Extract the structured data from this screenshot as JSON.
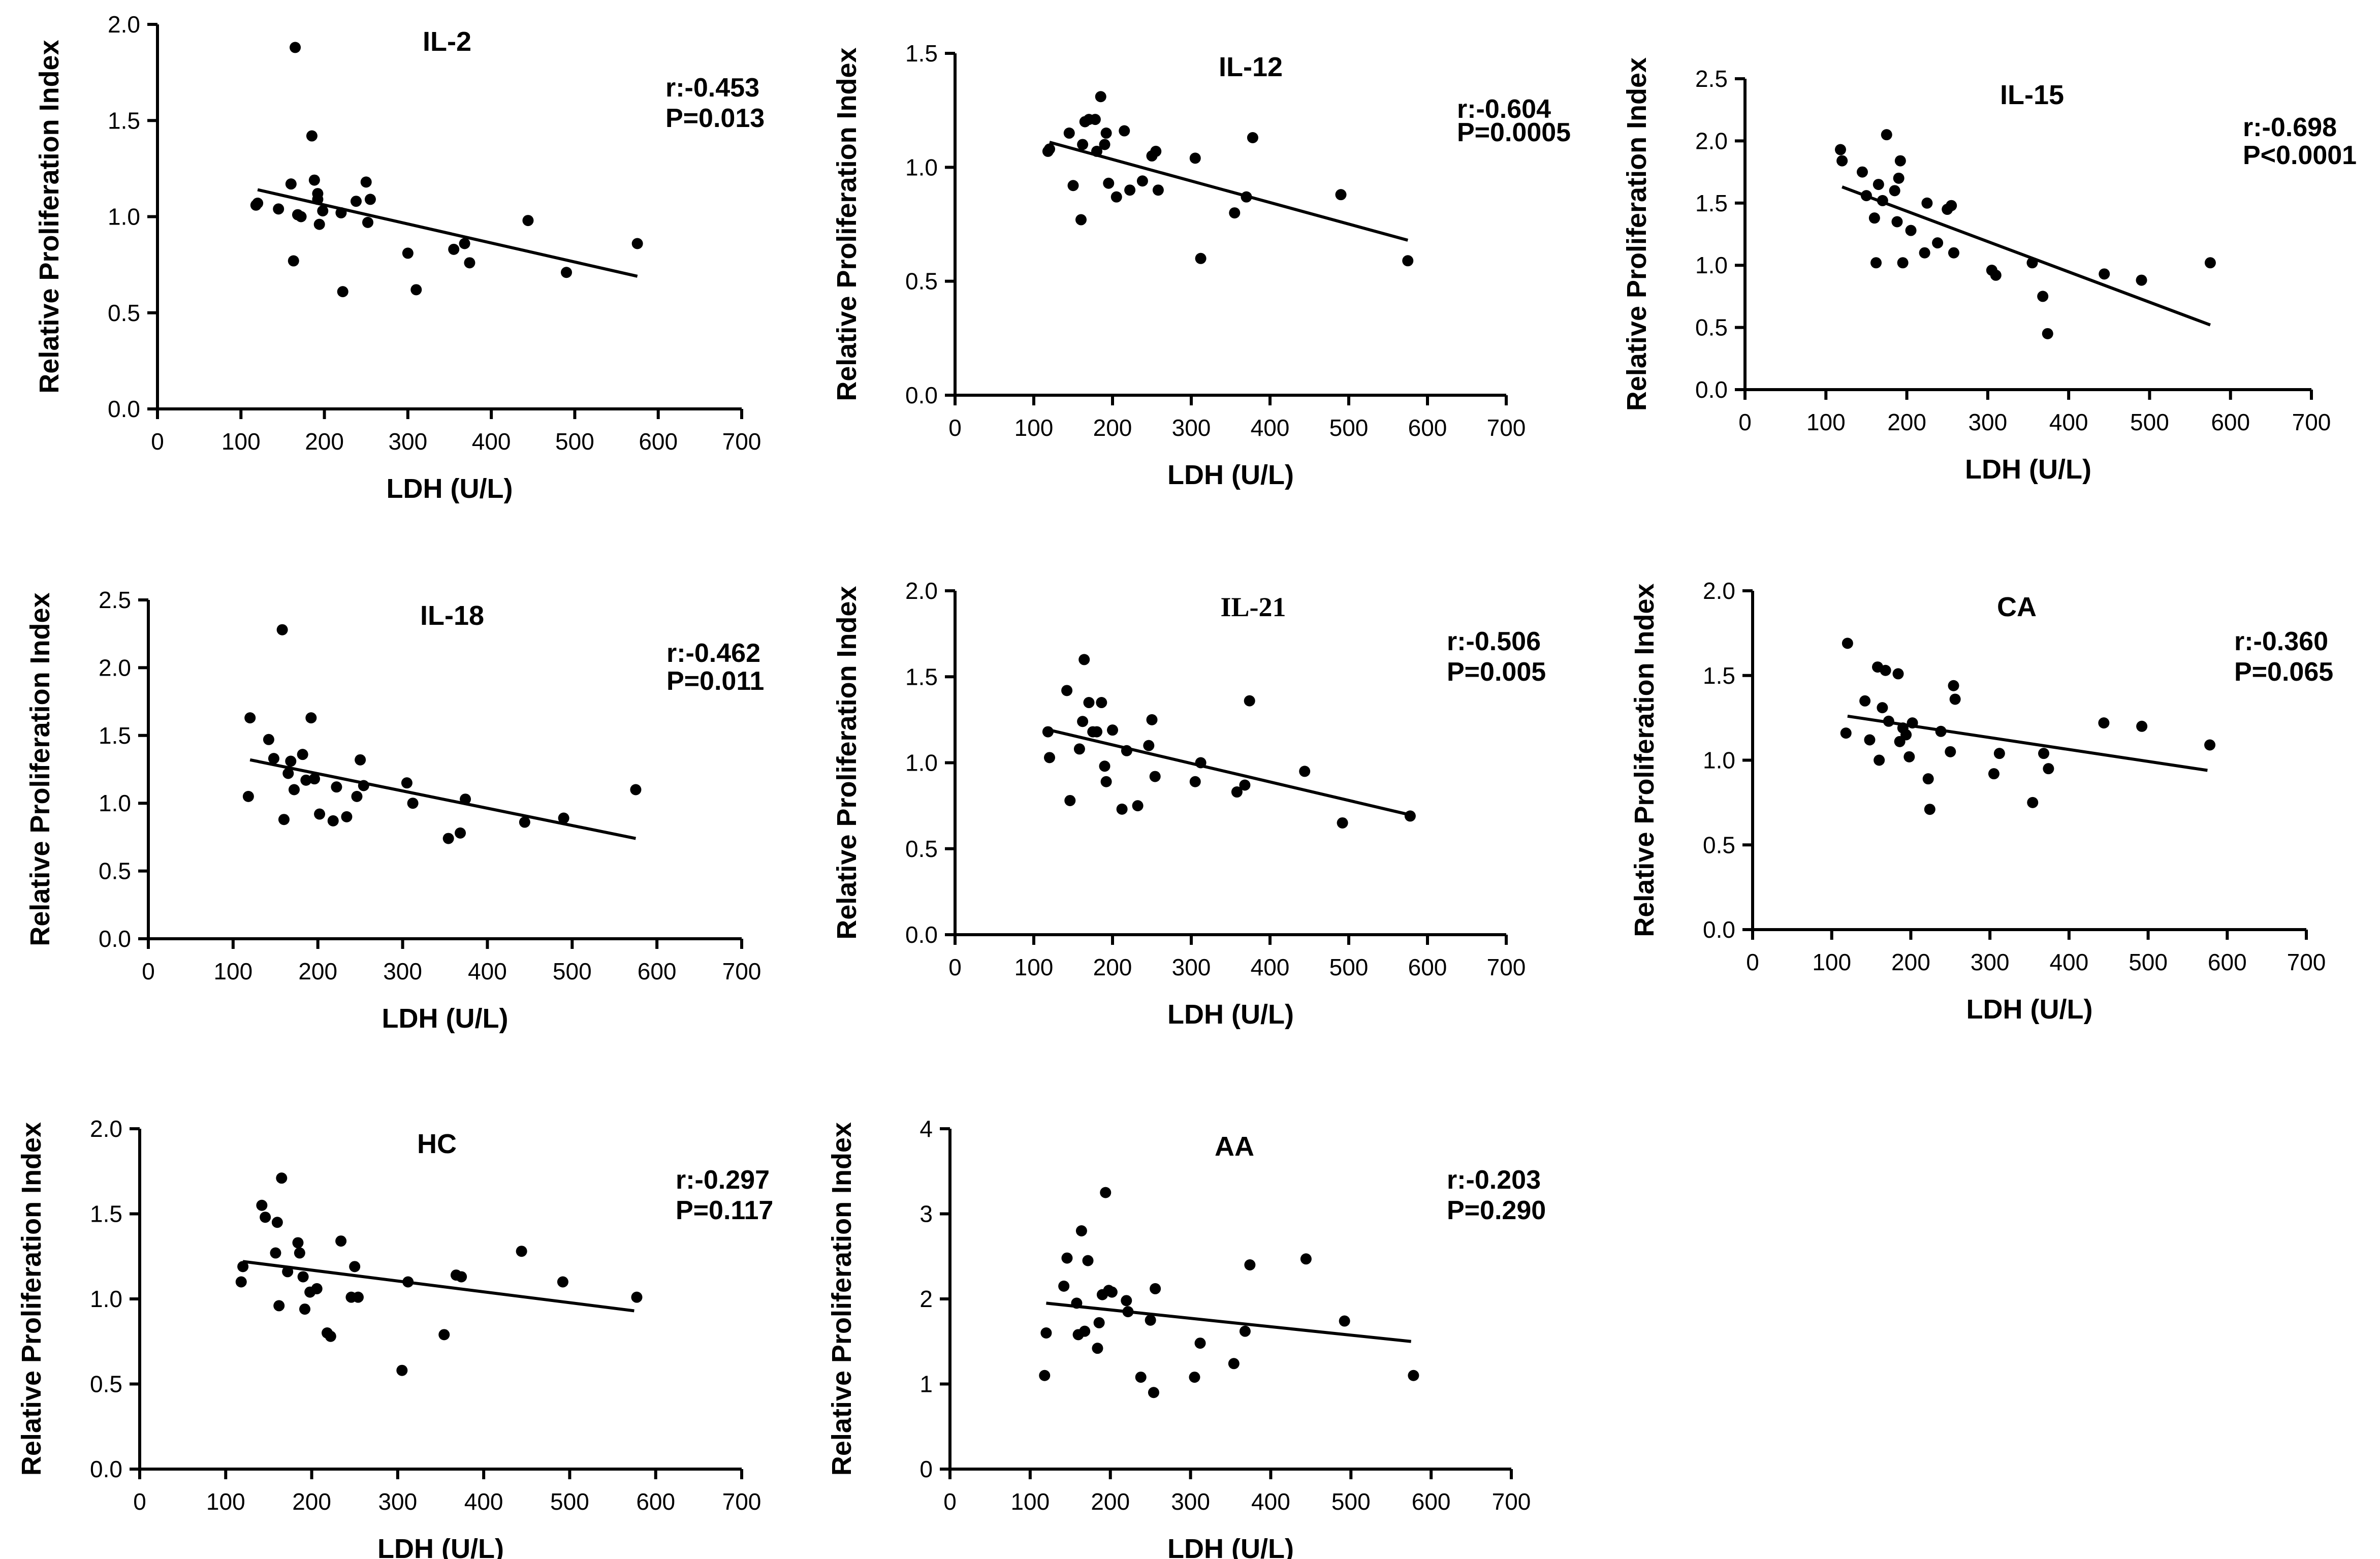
{
  "chart_data": [
    {
      "type": "scatter",
      "title": "IL-2",
      "xlabel": "LDH (U/L)",
      "ylabel": "Relative Proliferation Index",
      "xlim": [
        0,
        700
      ],
      "ylim": [
        0,
        2.0
      ],
      "xticks": [
        0,
        100,
        200,
        300,
        400,
        500,
        600,
        700
      ],
      "xtick_labels": [
        "0",
        "100",
        "200",
        "300",
        "400",
        "500",
        "600",
        "700"
      ],
      "yticks": [
        0,
        0.5,
        1.0,
        1.5,
        2.0
      ],
      "ytick_labels": [
        "0.0",
        "0.5",
        "1.0",
        "1.5",
        "2.0"
      ],
      "r_text": "r:-0.453",
      "p_text": "P=0.013",
      "points": [
        [
          118,
          1.06
        ],
        [
          120,
          1.07
        ],
        [
          145,
          1.04
        ],
        [
          160,
          1.17
        ],
        [
          163,
          0.77
        ],
        [
          165,
          1.88
        ],
        [
          168,
          1.01
        ],
        [
          172,
          1.0
        ],
        [
          185,
          1.42
        ],
        [
          188,
          1.19
        ],
        [
          192,
          1.12
        ],
        [
          192,
          1.09
        ],
        [
          194,
          0.96
        ],
        [
          198,
          1.03
        ],
        [
          220,
          1.02
        ],
        [
          222,
          0.61
        ],
        [
          238,
          1.08
        ],
        [
          250,
          1.18
        ],
        [
          252,
          0.97
        ],
        [
          255,
          1.09
        ],
        [
          300,
          0.81
        ],
        [
          310,
          0.62
        ],
        [
          355,
          0.83
        ],
        [
          368,
          0.86
        ],
        [
          374,
          0.76
        ],
        [
          444,
          0.98
        ],
        [
          490,
          0.71
        ],
        [
          575,
          0.86
        ]
      ],
      "fit": {
        "x": [
          120,
          575
        ],
        "y": [
          1.14,
          0.69
        ]
      }
    },
    {
      "type": "scatter",
      "title": "IL-12",
      "xlabel": "LDH (U/L)",
      "ylabel": "Relative Proliferation Index",
      "xlim": [
        0,
        700
      ],
      "ylim": [
        0,
        1.5
      ],
      "xticks": [
        0,
        100,
        200,
        300,
        400,
        500,
        600,
        700
      ],
      "xtick_labels": [
        "0",
        "100",
        "200",
        "300",
        "400",
        "500",
        "600",
        "700"
      ],
      "yticks": [
        0,
        0.5,
        1.0,
        1.5
      ],
      "ytick_labels": [
        "0.0",
        "0.5",
        "1.0",
        "1.5"
      ],
      "r_text": "r:-0.604",
      "p_text": "P=0.0005",
      "points": [
        [
          118,
          1.07
        ],
        [
          120,
          1.08
        ],
        [
          145,
          1.15
        ],
        [
          150,
          0.92
        ],
        [
          160,
          0.77
        ],
        [
          162,
          1.1
        ],
        [
          165,
          1.2
        ],
        [
          170,
          1.21
        ],
        [
          178,
          1.21
        ],
        [
          180,
          1.07
        ],
        [
          185,
          1.31
        ],
        [
          190,
          1.1
        ],
        [
          192,
          1.15
        ],
        [
          195,
          0.93
        ],
        [
          205,
          0.87
        ],
        [
          215,
          1.16
        ],
        [
          222,
          0.9
        ],
        [
          238,
          0.94
        ],
        [
          250,
          1.05
        ],
        [
          255,
          1.07
        ],
        [
          258,
          0.9
        ],
        [
          305,
          1.04
        ],
        [
          312,
          0.6
        ],
        [
          355,
          0.8
        ],
        [
          370,
          0.87
        ],
        [
          378,
          1.13
        ],
        [
          490,
          0.88
        ],
        [
          575,
          0.59
        ]
      ],
      "fit": {
        "x": [
          120,
          575
        ],
        "y": [
          1.11,
          0.68
        ]
      }
    },
    {
      "type": "scatter",
      "title": "IL-15",
      "xlabel": "LDH (U/L)",
      "ylabel": "Relative Proliferation Index",
      "xlim": [
        0,
        700
      ],
      "ylim": [
        0,
        2.5
      ],
      "xticks": [
        0,
        100,
        200,
        300,
        400,
        500,
        600,
        700
      ],
      "xtick_labels": [
        "0",
        "100",
        "200",
        "300",
        "400",
        "500",
        "600",
        "700"
      ],
      "yticks": [
        0,
        0.5,
        1.0,
        1.5,
        2.0,
        2.5
      ],
      "ytick_labels": [
        "0.0",
        "0.5",
        "1.0",
        "1.5",
        "2.0",
        "2.5"
      ],
      "r_text": "r:-0.698",
      "p_text": "P<0.0001",
      "points": [
        [
          118,
          1.93
        ],
        [
          120,
          1.84
        ],
        [
          145,
          1.75
        ],
        [
          150,
          1.56
        ],
        [
          160,
          1.38
        ],
        [
          162,
          1.02
        ],
        [
          165,
          1.65
        ],
        [
          170,
          1.52
        ],
        [
          175,
          2.05
        ],
        [
          185,
          1.6
        ],
        [
          188,
          1.35
        ],
        [
          190,
          1.7
        ],
        [
          192,
          1.84
        ],
        [
          195,
          1.02
        ],
        [
          205,
          1.28
        ],
        [
          222,
          1.1
        ],
        [
          225,
          1.5
        ],
        [
          238,
          1.18
        ],
        [
          250,
          1.45
        ],
        [
          255,
          1.48
        ],
        [
          258,
          1.1
        ],
        [
          305,
          0.96
        ],
        [
          310,
          0.92
        ],
        [
          355,
          1.02
        ],
        [
          368,
          0.75
        ],
        [
          374,
          0.45
        ],
        [
          444,
          0.93
        ],
        [
          490,
          0.88
        ],
        [
          575,
          1.02
        ]
      ],
      "fit": {
        "x": [
          120,
          575
        ],
        "y": [
          1.63,
          0.52
        ]
      }
    },
    {
      "type": "scatter",
      "title": "IL-18",
      "xlabel": "LDH (U/L)",
      "ylabel": "Relative Proliferation Index",
      "xlim": [
        0,
        700
      ],
      "ylim": [
        0,
        2.5
      ],
      "xticks": [
        0,
        100,
        200,
        300,
        400,
        500,
        600,
        700
      ],
      "xtick_labels": [
        "0",
        "100",
        "200",
        "300",
        "400",
        "500",
        "600",
        "700"
      ],
      "yticks": [
        0,
        0.5,
        1.0,
        1.5,
        2.0,
        2.5
      ],
      "ytick_labels": [
        "0.0",
        "0.5",
        "1.0",
        "1.5",
        "2.0",
        "2.5"
      ],
      "r_text": "r:-0.462",
      "p_text": "P=0.011",
      "points": [
        [
          118,
          1.05
        ],
        [
          120,
          1.63
        ],
        [
          142,
          1.47
        ],
        [
          148,
          1.33
        ],
        [
          158,
          2.28
        ],
        [
          160,
          0.88
        ],
        [
          165,
          1.22
        ],
        [
          168,
          1.31
        ],
        [
          172,
          1.1
        ],
        [
          182,
          1.36
        ],
        [
          186,
          1.17
        ],
        [
          192,
          1.63
        ],
        [
          196,
          1.18
        ],
        [
          202,
          0.92
        ],
        [
          218,
          0.87
        ],
        [
          222,
          1.12
        ],
        [
          234,
          0.9
        ],
        [
          246,
          1.05
        ],
        [
          250,
          1.32
        ],
        [
          254,
          1.13
        ],
        [
          305,
          1.15
        ],
        [
          312,
          1.0
        ],
        [
          354,
          0.74
        ],
        [
          368,
          0.78
        ],
        [
          374,
          1.03
        ],
        [
          444,
          0.86
        ],
        [
          490,
          0.89
        ],
        [
          575,
          1.1
        ]
      ],
      "fit": {
        "x": [
          120,
          575
        ],
        "y": [
          1.32,
          0.74
        ]
      }
    },
    {
      "type": "scatter",
      "title": "IL-21",
      "xlabel": "LDH (U/L)",
      "ylabel": "Relative Proliferation Index",
      "xlim": [
        0,
        700
      ],
      "ylim": [
        0,
        2.0
      ],
      "xticks": [
        0,
        100,
        200,
        300,
        400,
        500,
        600,
        700
      ],
      "xtick_labels": [
        "0",
        "100",
        "200",
        "300",
        "400",
        "500",
        "600",
        "700"
      ],
      "yticks": [
        0,
        0.5,
        1.0,
        1.5,
        2.0
      ],
      "ytick_labels": [
        "0.0",
        "0.5",
        "1.0",
        "1.5",
        "2.0"
      ],
      "r_text": "r:-0.506",
      "p_text": "P=0.005",
      "points": [
        [
          118,
          1.18
        ],
        [
          120,
          1.03
        ],
        [
          142,
          1.42
        ],
        [
          146,
          0.78
        ],
        [
          158,
          1.08
        ],
        [
          162,
          1.24
        ],
        [
          164,
          1.6
        ],
        [
          170,
          1.35
        ],
        [
          175,
          1.18
        ],
        [
          180,
          1.18
        ],
        [
          186,
          1.35
        ],
        [
          190,
          0.98
        ],
        [
          192,
          0.89
        ],
        [
          200,
          1.19
        ],
        [
          212,
          0.73
        ],
        [
          218,
          1.07
        ],
        [
          232,
          0.75
        ],
        [
          246,
          1.1
        ],
        [
          250,
          1.25
        ],
        [
          254,
          0.92
        ],
        [
          305,
          0.89
        ],
        [
          312,
          1.0
        ],
        [
          358,
          0.83
        ],
        [
          368,
          0.87
        ],
        [
          374,
          1.36
        ],
        [
          444,
          0.95
        ],
        [
          492,
          0.65
        ],
        [
          578,
          0.69
        ]
      ],
      "fit": {
        "x": [
          120,
          575
        ],
        "y": [
          1.19,
          0.7
        ]
      }
    },
    {
      "type": "scatter",
      "title": "CA",
      "xlabel": "LDH (U/L)",
      "ylabel": "Relative Proliferation Index",
      "xlim": [
        0,
        700
      ],
      "ylim": [
        0,
        2.0
      ],
      "xticks": [
        0,
        100,
        200,
        300,
        400,
        500,
        600,
        700
      ],
      "xtick_labels": [
        "0",
        "100",
        "200",
        "300",
        "400",
        "500",
        "600",
        "700"
      ],
      "yticks": [
        0,
        0.5,
        1.0,
        1.5,
        2.0
      ],
      "ytick_labels": [
        "0.0",
        "0.5",
        "1.0",
        "1.5",
        "2.0"
      ],
      "r_text": "r:-0.360",
      "p_text": "P=0.065",
      "points": [
        [
          118,
          1.16
        ],
        [
          120,
          1.69
        ],
        [
          142,
          1.35
        ],
        [
          148,
          1.12
        ],
        [
          158,
          1.55
        ],
        [
          160,
          1.0
        ],
        [
          164,
          1.31
        ],
        [
          168,
          1.53
        ],
        [
          172,
          1.23
        ],
        [
          184,
          1.51
        ],
        [
          186,
          1.11
        ],
        [
          190,
          1.19
        ],
        [
          194,
          1.15
        ],
        [
          198,
          1.02
        ],
        [
          202,
          1.22
        ],
        [
          222,
          0.89
        ],
        [
          224,
          0.71
        ],
        [
          238,
          1.17
        ],
        [
          250,
          1.05
        ],
        [
          254,
          1.44
        ],
        [
          256,
          1.36
        ],
        [
          305,
          0.92
        ],
        [
          312,
          1.04
        ],
        [
          354,
          0.75
        ],
        [
          368,
          1.04
        ],
        [
          374,
          0.95
        ],
        [
          444,
          1.22
        ],
        [
          492,
          1.2
        ],
        [
          578,
          1.09
        ]
      ],
      "fit": {
        "x": [
          120,
          575
        ],
        "y": [
          1.26,
          0.94
        ]
      }
    },
    {
      "type": "scatter",
      "title": "HC",
      "xlabel": "LDH (U/L)",
      "ylabel": "Relative Proliferation Index",
      "xlim": [
        0,
        700
      ],
      "ylim": [
        0,
        2.0
      ],
      "xticks": [
        0,
        100,
        200,
        300,
        400,
        500,
        600,
        700
      ],
      "xtick_labels": [
        "0",
        "100",
        "200",
        "300",
        "400",
        "500",
        "600",
        "700"
      ],
      "yticks": [
        0,
        0.5,
        1.0,
        1.5,
        2.0
      ],
      "ytick_labels": [
        "0.0",
        "0.5",
        "1.0",
        "1.5",
        "2.0"
      ],
      "r_text": "r:-0.297",
      "p_text": "P=0.117",
      "points": [
        [
          118,
          1.1
        ],
        [
          120,
          1.19
        ],
        [
          142,
          1.55
        ],
        [
          146,
          1.48
        ],
        [
          158,
          1.27
        ],
        [
          160,
          1.45
        ],
        [
          162,
          0.96
        ],
        [
          165,
          1.71
        ],
        [
          172,
          1.16
        ],
        [
          184,
          1.33
        ],
        [
          186,
          1.27
        ],
        [
          190,
          1.13
        ],
        [
          192,
          0.94
        ],
        [
          198,
          1.04
        ],
        [
          206,
          1.06
        ],
        [
          218,
          0.8
        ],
        [
          222,
          0.78
        ],
        [
          234,
          1.34
        ],
        [
          246,
          1.01
        ],
        [
          250,
          1.19
        ],
        [
          254,
          1.01
        ],
        [
          305,
          0.58
        ],
        [
          312,
          1.1
        ],
        [
          354,
          0.79
        ],
        [
          368,
          1.14
        ],
        [
          374,
          1.13
        ],
        [
          444,
          1.28
        ],
        [
          492,
          1.1
        ],
        [
          578,
          1.01
        ]
      ],
      "fit": {
        "x": [
          120,
          575
        ],
        "y": [
          1.22,
          0.93
        ]
      }
    },
    {
      "type": "scatter",
      "title": "AA",
      "xlabel": "LDH (U/L)",
      "ylabel": "Relative Proliferation Index",
      "xlim": [
        0,
        700
      ],
      "ylim": [
        0,
        4
      ],
      "xticks": [
        0,
        100,
        200,
        300,
        400,
        500,
        600,
        700
      ],
      "xtick_labels": [
        "0",
        "100",
        "200",
        "300",
        "400",
        "500",
        "600",
        "700"
      ],
      "yticks": [
        0,
        1,
        2,
        3,
        4
      ],
      "ytick_labels": [
        "0",
        "1",
        "2",
        "3",
        "4"
      ],
      "r_text": "r:-0.203",
      "p_text": "P=0.290",
      "points": [
        [
          118,
          1.1
        ],
        [
          120,
          1.6
        ],
        [
          142,
          2.15
        ],
        [
          146,
          2.48
        ],
        [
          158,
          1.95
        ],
        [
          160,
          1.58
        ],
        [
          164,
          2.8
        ],
        [
          168,
          1.62
        ],
        [
          172,
          2.45
        ],
        [
          184,
          1.42
        ],
        [
          186,
          1.72
        ],
        [
          190,
          2.05
        ],
        [
          194,
          3.25
        ],
        [
          198,
          2.1
        ],
        [
          202,
          2.08
        ],
        [
          220,
          1.98
        ],
        [
          222,
          1.85
        ],
        [
          238,
          1.08
        ],
        [
          250,
          1.75
        ],
        [
          254,
          0.9
        ],
        [
          256,
          2.12
        ],
        [
          305,
          1.08
        ],
        [
          312,
          1.48
        ],
        [
          354,
          1.24
        ],
        [
          368,
          1.62
        ],
        [
          374,
          2.4
        ],
        [
          444,
          2.47
        ],
        [
          492,
          1.74
        ],
        [
          578,
          1.1
        ]
      ],
      "fit": {
        "x": [
          120,
          575
        ],
        "y": [
          1.95,
          1.5
        ]
      }
    }
  ]
}
